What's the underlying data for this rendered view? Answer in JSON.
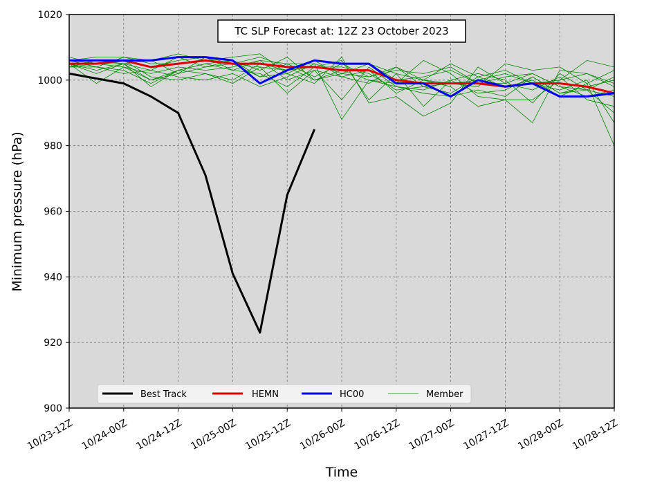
{
  "chart_data": {
    "type": "line",
    "title": "TC SLP Forecast at: 12Z 23 October 2023",
    "xlabel": "Time",
    "ylabel": "Minimum pressure (hPa)",
    "ylim": [
      900,
      1020
    ],
    "yticks": [
      900,
      920,
      940,
      960,
      980,
      1000,
      1020
    ],
    "xticks": [
      "10/23-12Z",
      "10/24-00Z",
      "10/24-12Z",
      "10/25-00Z",
      "10/25-12Z",
      "10/26-00Z",
      "10/26-12Z",
      "10/27-00Z",
      "10/27-12Z",
      "10/28-00Z",
      "10/28-12Z"
    ],
    "x_unit": "hours after 10/23-12Z",
    "xlim": [
      0,
      120
    ],
    "grid": true,
    "legend_position": "lower-left",
    "best_track": {
      "name": "Best Track",
      "color": "#000000",
      "x": [
        0,
        12,
        18,
        24,
        30,
        36,
        42,
        48,
        54
      ],
      "values": [
        1002,
        999,
        995,
        990,
        971,
        941,
        923,
        965,
        985
      ]
    },
    "hemn": {
      "name": "HEMN",
      "color": "#dd0000",
      "x": [
        0,
        6,
        12,
        18,
        24,
        30,
        36,
        42,
        48,
        54,
        60,
        66,
        72,
        78,
        84,
        90,
        96,
        102,
        108,
        114,
        120
      ],
      "values": [
        1005,
        1005,
        1006,
        1004,
        1005,
        1006,
        1005,
        1005,
        1004,
        1004,
        1003,
        1003,
        1000,
        999,
        999,
        999,
        998,
        999,
        999,
        998,
        996
      ]
    },
    "hc00": {
      "name": "HC00",
      "color": "#0000ee",
      "x": [
        0,
        6,
        12,
        18,
        24,
        30,
        36,
        42,
        48,
        54,
        60,
        66,
        72,
        78,
        84,
        90,
        96,
        102,
        108,
        114,
        120
      ],
      "values": [
        1006,
        1006,
        1006,
        1006,
        1007,
        1007,
        1006,
        999,
        1003,
        1006,
        1005,
        1005,
        999,
        999,
        995,
        1000,
        998,
        999,
        995,
        995,
        996
      ]
    },
    "members": {
      "name": "Member",
      "color": "#008800",
      "x": [
        0,
        6,
        12,
        18,
        24,
        30,
        36,
        42,
        48,
        54,
        60,
        66,
        72,
        78,
        84,
        90,
        96,
        102,
        108,
        114,
        120
      ],
      "series": [
        [
          1006,
          1004,
          1007,
          1006,
          1008,
          1006,
          1005,
          1004,
          1003,
          1006,
          1005,
          1005,
          1000,
          1001,
          1003,
          999,
          999,
          1002,
          998,
          997,
          995
        ],
        [
          1005,
          1002,
          1005,
          1000,
          1002,
          1004,
          1006,
          1003,
          1007,
          1000,
          1002,
          1001,
          1004,
          998,
          996,
          1001,
          1003,
          999,
          1000,
          1002,
          998
        ],
        [
          1004,
          1006,
          1006,
          1004,
          1006,
          1007,
          1005,
          1001,
          1005,
          1005,
          988,
          1000,
          998,
          997,
          1000,
          996,
          997,
          1001,
          996,
          998,
          1000
        ],
        [
          1006,
          1005,
          1004,
          1002,
          1004,
          1003,
          1004,
          1006,
          1000,
          1003,
          1001,
          1003,
          996,
          1000,
          998,
          992,
          994,
          994,
          1000,
          1006,
          1004
        ],
        [
          1005,
          999,
          1004,
          1000,
          1003,
          1005,
          1003,
          1002,
          998,
          1004,
          1006,
          994,
          1002,
          992,
          1000,
          1002,
          1000,
          993,
          1002,
          997,
          990
        ],
        [
          1007,
          1005,
          1005,
          998,
          1003,
          1002,
          1000,
          1005,
          1003,
          1004,
          1004,
          1002,
          997,
          998,
          999,
          998,
          1005,
          1003,
          1004,
          999,
          980
        ],
        [
          1006,
          1004,
          1002,
          1003,
          1007,
          1004,
          1005,
          1007,
          1004,
          1000,
          1003,
          1000,
          999,
          1006,
          1002,
          995,
          994,
          987,
          1003,
          1002,
          999
        ],
        [
          1004,
          1005,
          1006,
          1001,
          1000,
          1002,
          999,
          1004,
          996,
          1003,
          994,
          1004,
          998,
          996,
          995,
          997,
          995,
          1001,
          996,
          997,
          1001
        ],
        [
          1006,
          1007,
          1007,
          1005,
          1005,
          1006,
          1007,
          1008,
          1002,
          999,
          1007,
          993,
          995,
          989,
          993,
          1004,
          999,
          997,
          1001,
          994,
          992
        ],
        [
          1005,
          1003,
          1005,
          1003,
          1001,
          1000,
          1002,
          998,
          1001,
          1005,
          1002,
          1005,
          1002,
          1000,
          999,
          1000,
          1002,
          999,
          997,
          1000,
          987
        ],
        [
          1006,
          1006,
          1005,
          1006,
          1002,
          1007,
          1003,
          1006,
          1005,
          1001,
          1005,
          1001,
          1003,
          1002,
          1004,
          999,
          1001,
          1002,
          998,
          995,
          997
        ],
        [
          1004,
          1004,
          1003,
          999,
          1003,
          1005,
          1006,
          1001,
          1002,
          1006,
          1001,
          999,
          1004,
          1000,
          1005,
          1001,
          998,
          1000,
          995,
          999,
          1003
        ]
      ]
    }
  }
}
